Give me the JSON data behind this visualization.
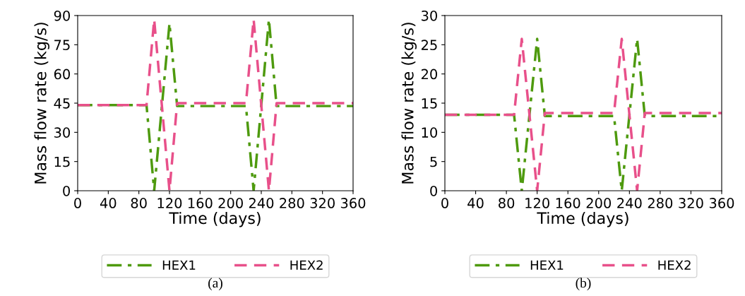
{
  "chart_data": [
    {
      "type": "line",
      "xlabel": "Time (days)",
      "ylabel": "Mass flow rate (kg/s)",
      "xlim": [
        0,
        360
      ],
      "xticks": [
        0,
        40,
        80,
        120,
        160,
        200,
        240,
        280,
        320,
        360
      ],
      "ylim": [
        0,
        90
      ],
      "yticks": [
        0,
        15,
        30,
        45,
        60,
        75,
        90
      ],
      "grid": false,
      "legend": "bottom",
      "annotations": [
        "(a)"
      ],
      "series": [
        {
          "name": "HEX1",
          "color": "#4e9a0e",
          "line_style": "dashdot",
          "x": [
            0,
            90,
            100,
            120,
            130,
            220,
            230,
            250,
            260,
            360
          ],
          "values": [
            44,
            44,
            0,
            86,
            43.5,
            43.5,
            0,
            88,
            43.5,
            43.5
          ]
        },
        {
          "name": "HEX2",
          "color": "#e8508a",
          "line_style": "dashed",
          "x": [
            0,
            90,
            100,
            120,
            130,
            220,
            230,
            250,
            260,
            360
          ],
          "values": [
            44,
            44,
            88,
            0,
            45,
            45,
            88,
            0,
            45,
            45
          ]
        }
      ]
    },
    {
      "type": "line",
      "xlabel": "Time (days)",
      "ylabel": "Mass flow rate (kg/s)",
      "xlim": [
        0,
        360
      ],
      "xticks": [
        0,
        40,
        80,
        120,
        160,
        200,
        240,
        280,
        320,
        360
      ],
      "ylim": [
        0,
        30
      ],
      "yticks": [
        0,
        5,
        10,
        15,
        20,
        25,
        30
      ],
      "grid": false,
      "legend": "bottom",
      "annotations": [
        "(b)"
      ],
      "series": [
        {
          "name": "HEX1",
          "color": "#4e9a0e",
          "line_style": "dashdot",
          "x": [
            0,
            90,
            100,
            120,
            130,
            220,
            230,
            250,
            260,
            360
          ],
          "values": [
            13,
            13,
            0,
            26,
            12.8,
            12.8,
            0,
            26,
            12.8,
            12.8
          ]
        },
        {
          "name": "HEX2",
          "color": "#e8508a",
          "line_style": "dashed",
          "x": [
            0,
            90,
            100,
            120,
            130,
            220,
            230,
            250,
            260,
            360
          ],
          "values": [
            13,
            13,
            26,
            0,
            13.3,
            13.3,
            26,
            0,
            13.3,
            13.3
          ]
        }
      ]
    }
  ]
}
